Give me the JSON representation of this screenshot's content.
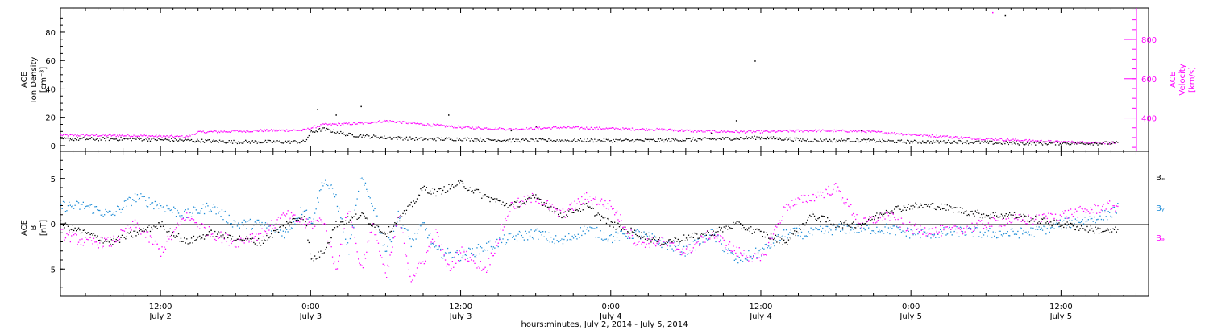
{
  "colors": {
    "axis": "#000000",
    "density": "#000000",
    "velocity": "#ff00ff",
    "bx": "#000000",
    "by": "#1a8ad6",
    "bz": "#ff00ff"
  },
  "footer": {
    "xlabel": "hours:minutes, July  2, 2014  -  July  5, 2014"
  },
  "chart_data": [
    {
      "type": "scatter",
      "panel": "plasma",
      "ylabel_left": [
        "ACE",
        "Ion Density",
        "[cm⁻³]"
      ],
      "ylabel_right": [
        "ACE",
        "Velocity",
        "[km/s]"
      ],
      "yticks_left": [
        0,
        20,
        40,
        60,
        80
      ],
      "yticks_right": [
        400,
        600,
        800
      ],
      "ylim_left": [
        -4,
        97
      ],
      "ylim_right": [
        230,
        960
      ],
      "xlim_hours": [
        4,
        91
      ],
      "x_unit": "hours since July 2, 2014 00:00",
      "series": [
        {
          "series_key": "density",
          "x": [
            4,
            10,
            14,
            18,
            22,
            23.5,
            24,
            25,
            27,
            30,
            33,
            36,
            40,
            44,
            48,
            52,
            56,
            60,
            64,
            68,
            72,
            76,
            80,
            84,
            88.5
          ],
          "y": [
            5,
            5,
            4,
            3,
            3,
            3,
            10,
            12,
            8,
            6,
            5,
            5,
            4,
            4,
            4,
            4,
            5,
            6,
            4,
            4,
            3,
            3,
            2,
            2,
            2
          ],
          "outliers_x": [
            24.5,
            26,
            28,
            35,
            40,
            42,
            56,
            58,
            59.5,
            68,
            79.5
          ],
          "outliers_y": [
            26,
            22,
            28,
            22,
            11,
            14,
            9,
            18,
            60,
            11,
            92
          ]
        },
        {
          "series_key": "velocity",
          "x": [
            4,
            10,
            14,
            15,
            20,
            23.5,
            24,
            25,
            28,
            30,
            33,
            36,
            40,
            44,
            48,
            52,
            55,
            57,
            60,
            64,
            68,
            72,
            76,
            80,
            84,
            88.5
          ],
          "y": [
            315,
            312,
            306,
            330,
            338,
            340,
            352,
            368,
            375,
            388,
            370,
            355,
            345,
            354,
            348,
            343,
            335,
            333,
            332,
            338,
            335,
            318,
            302,
            290,
            280,
            275
          ],
          "outliers_x": [
            78.5
          ],
          "outliers_y": [
            940
          ]
        }
      ]
    },
    {
      "type": "line",
      "panel": "magnetic-field",
      "ylabel_left": [
        "ACE",
        "B",
        "[nT]"
      ],
      "legend": [
        "Bₓ",
        "Bᵧ",
        "Bₔ"
      ],
      "legend_placement": "right",
      "yticks": [
        -5,
        0,
        5
      ],
      "ylim": [
        -8,
        8
      ],
      "xlim_hours": [
        4,
        91
      ],
      "x_unit": "hours since July 2, 2014 00:00",
      "zero_line": true,
      "series": [
        {
          "series_key": "bx",
          "x": [
            4,
            6,
            8,
            10,
            12,
            14,
            16,
            18,
            20,
            22,
            23.5,
            24,
            25,
            26,
            28,
            30,
            32,
            33,
            34,
            35,
            36,
            38,
            40,
            42,
            44,
            46,
            48,
            50,
            52,
            54,
            56,
            58,
            60,
            62,
            64,
            66,
            68,
            70,
            72,
            74,
            76,
            78,
            80,
            82,
            84,
            86,
            88,
            88.5
          ],
          "y": [
            0,
            -1,
            -2,
            -1,
            0,
            -2,
            -1,
            -1.5,
            -2,
            0,
            1,
            -4,
            -3,
            0,
            1,
            -1,
            2,
            4,
            3.5,
            4,
            4.5,
            3,
            2,
            3,
            1,
            2,
            0,
            -1,
            -2,
            -1.5,
            -1,
            0,
            -1,
            -2,
            1,
            0,
            0,
            1.5,
            2,
            2,
            1.5,
            1,
            1,
            0.5,
            0,
            -0.5,
            -0.8,
            -0.6
          ]
        },
        {
          "series_key": "by",
          "x": [
            4,
            6,
            8,
            10,
            12,
            14,
            16,
            18,
            20,
            22,
            23.5,
            24,
            25,
            26,
            27,
            28,
            29,
            30,
            31,
            32,
            33,
            34,
            36,
            38,
            40,
            42,
            44,
            46,
            48,
            50,
            52,
            54,
            56,
            58,
            60,
            62,
            64,
            66,
            68,
            70,
            72,
            74,
            76,
            78,
            80,
            82,
            84,
            86,
            88,
            88.5
          ],
          "y": [
            2,
            2,
            1,
            3,
            2,
            1,
            2,
            0,
            0,
            -1,
            2,
            0,
            5,
            3,
            -3,
            5,
            2,
            -3,
            1,
            -2,
            0,
            -3,
            -3.5,
            -2.5,
            -1.5,
            -1,
            -2,
            -0.5,
            -1.5,
            -1,
            -2,
            -3,
            -1,
            -4,
            -3,
            -1,
            -1,
            -0.5,
            -0.5,
            -0.5,
            -1,
            -1,
            -0.8,
            -1,
            -1,
            -0.8,
            0,
            0.5,
            1.2,
            1.8
          ]
        },
        {
          "series_key": "bz",
          "x": [
            4,
            6,
            8,
            10,
            12,
            14,
            16,
            18,
            20,
            22,
            23.5,
            24,
            25,
            26,
            27,
            28,
            29,
            30,
            31,
            32,
            33,
            34,
            35,
            36,
            38,
            40,
            42,
            44,
            46,
            48,
            50,
            52,
            54,
            56,
            58,
            60,
            62,
            64,
            66,
            68,
            70,
            72,
            74,
            76,
            78,
            80,
            82,
            84,
            86,
            88,
            88.5
          ],
          "y": [
            -1,
            -2,
            -2,
            0,
            -3,
            1,
            -1,
            -2,
            -1,
            1,
            0,
            0,
            0.5,
            -5,
            2,
            -5,
            0,
            -6,
            1,
            -6,
            -4,
            -1,
            -5,
            -3,
            -5,
            2,
            3,
            1,
            3,
            2,
            -2,
            -2,
            -3,
            -1,
            -3,
            -4,
            2,
            3,
            4,
            0,
            1,
            -0.5,
            -0.8,
            -0.5,
            0,
            0.5,
            0.5,
            1,
            1.5,
            2,
            2
          ]
        }
      ]
    }
  ],
  "xaxis_ticks": [
    {
      "hour": 12,
      "top": "12:00",
      "bottom": "July 2"
    },
    {
      "hour": 24,
      "top": "0:00",
      "bottom": "July 3"
    },
    {
      "hour": 36,
      "top": "12:00",
      "bottom": "July 3"
    },
    {
      "hour": 48,
      "top": "0:00",
      "bottom": "July 4"
    },
    {
      "hour": 60,
      "top": "12:00",
      "bottom": "July 4"
    },
    {
      "hour": 72,
      "top": "0:00",
      "bottom": "July 5"
    },
    {
      "hour": 84,
      "top": "12:00",
      "bottom": "July 5"
    }
  ]
}
